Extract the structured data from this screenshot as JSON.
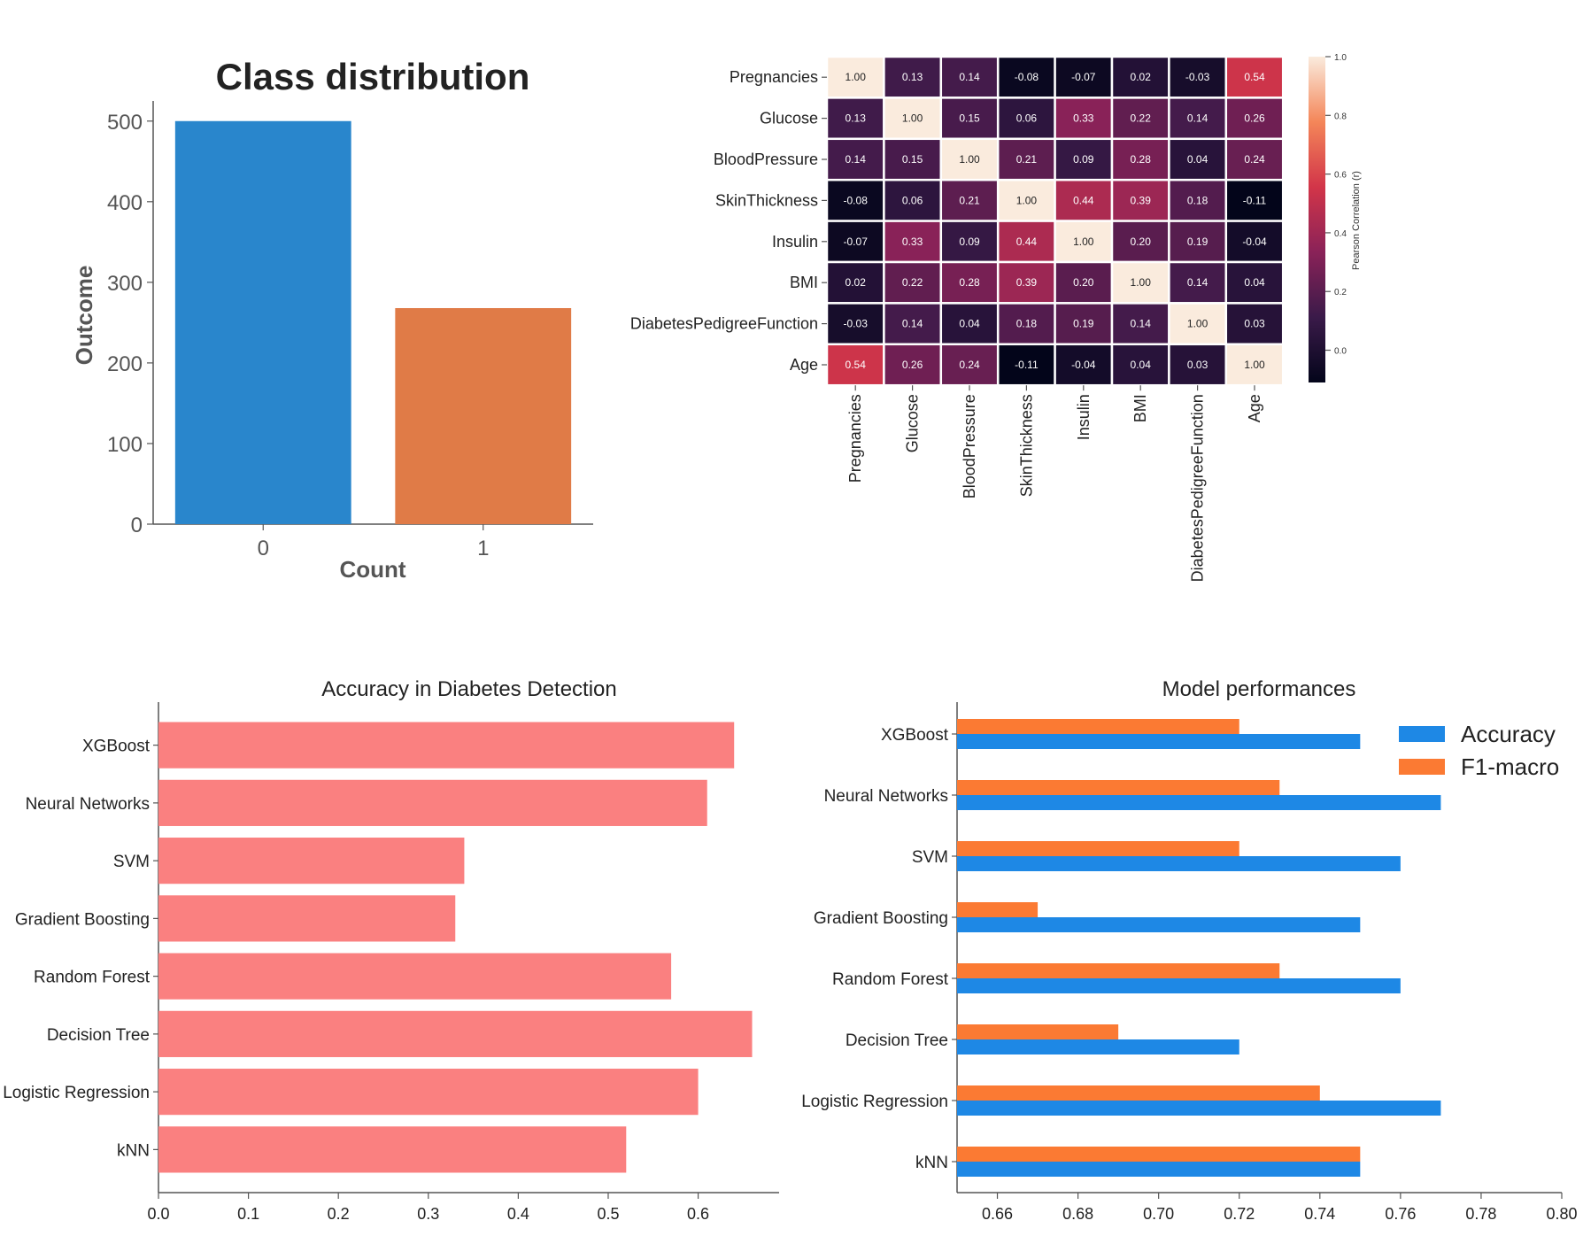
{
  "chart_data": [
    {
      "type": "bar",
      "title": "Class distribution",
      "xlabel": "Count",
      "ylabel": "Outcome",
      "categories": [
        "0",
        "1"
      ],
      "values": [
        500,
        268
      ],
      "ylim": [
        0,
        525
      ],
      "yticks": [
        0,
        100,
        200,
        300,
        400,
        500
      ],
      "colors": [
        "#2986cc",
        "#e07b47"
      ],
      "grid": false
    },
    {
      "type": "heatmap",
      "title": "",
      "labels": [
        "Pregnancies",
        "Glucose",
        "BloodPressure",
        "SkinThickness",
        "Insulin",
        "BMI",
        "DiabetesPedigreeFunction",
        "Age"
      ],
      "values": [
        [
          1.0,
          0.13,
          0.14,
          -0.08,
          -0.07,
          0.02,
          -0.03,
          0.54
        ],
        [
          0.13,
          1.0,
          0.15,
          0.06,
          0.33,
          0.22,
          0.14,
          0.26
        ],
        [
          0.14,
          0.15,
          1.0,
          0.21,
          0.09,
          0.28,
          0.04,
          0.24
        ],
        [
          -0.08,
          0.06,
          0.21,
          1.0,
          0.44,
          0.39,
          0.18,
          -0.11
        ],
        [
          -0.07,
          0.33,
          0.09,
          0.44,
          1.0,
          0.2,
          0.19,
          -0.04
        ],
        [
          0.02,
          0.22,
          0.28,
          0.39,
          0.2,
          1.0,
          0.14,
          0.04
        ],
        [
          -0.03,
          0.14,
          0.04,
          0.18,
          0.19,
          0.14,
          1.0,
          0.03
        ],
        [
          0.54,
          0.26,
          0.24,
          -0.11,
          -0.04,
          0.04,
          0.03,
          1.0
        ]
      ],
      "colorbar_label": "Pearson Correlation (r)",
      "colorbar_ticks": [
        "0.0",
        "0.2",
        "0.4",
        "0.6",
        "0.8",
        "1.0"
      ],
      "vmin": -0.11,
      "vmax": 1.0
    },
    {
      "type": "bar",
      "orientation": "horizontal",
      "title": "Accuracy in Diabetes Detection",
      "categories": [
        "XGBoost",
        "Neural Networks",
        "SVM",
        "Gradient Boosting",
        "Random Forest",
        "Decision Tree",
        "Logistic Regression",
        "kNN"
      ],
      "values": [
        0.64,
        0.61,
        0.34,
        0.33,
        0.57,
        0.66,
        0.6,
        0.52
      ],
      "xlim": [
        0,
        0.69
      ],
      "xticks": [
        "0.0",
        "0.1",
        "0.2",
        "0.3",
        "0.4",
        "0.5",
        "0.6"
      ],
      "color": "#fa8080",
      "grid": false
    },
    {
      "type": "bar",
      "orientation": "horizontal",
      "title": "Model performances",
      "categories": [
        "XGBoost",
        "Neural Networks",
        "SVM",
        "Gradient Boosting",
        "Random Forest",
        "Decision Tree",
        "Logistic Regression",
        "kNN"
      ],
      "series": [
        {
          "name": "Accuracy",
          "values": [
            0.75,
            0.77,
            0.76,
            0.75,
            0.76,
            0.72,
            0.77,
            0.75
          ],
          "color": "#1e88e5"
        },
        {
          "name": "F1-macro",
          "values": [
            0.72,
            0.73,
            0.72,
            0.67,
            0.73,
            0.69,
            0.74,
            0.75
          ],
          "color": "#fb7a33"
        }
      ],
      "xlim": [
        0.65,
        0.8
      ],
      "xticks": [
        "0.66",
        "0.68",
        "0.70",
        "0.72",
        "0.74",
        "0.76",
        "0.78",
        "0.80"
      ],
      "legend": "top-right",
      "grid": false
    }
  ]
}
